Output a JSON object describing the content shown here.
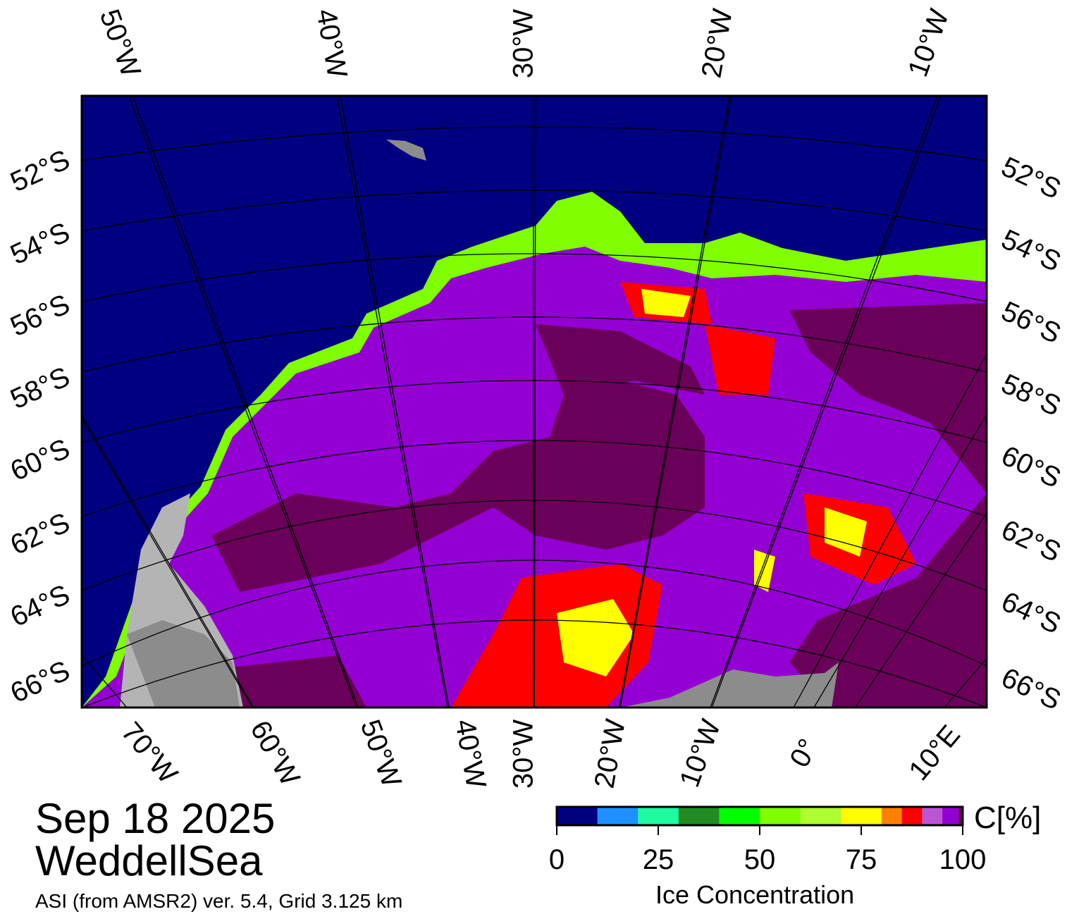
{
  "title": {
    "date": "Sep 18 2025",
    "region": "WeddellSea",
    "footer": "ASI (from AMSR2) ver. 5.4,  Grid 3.125 km"
  },
  "top_lon_labels": [
    "50°W",
    "40°W",
    "30°W",
    "20°W",
    "10°W"
  ],
  "bottom_lon_labels": [
    "70°W",
    "60°W",
    "50°W",
    "40°W",
    "30°W",
    "20°W",
    "10°W",
    "0°",
    "10°E"
  ],
  "lat_labels": [
    "52°S",
    "54°S",
    "56°S",
    "58°S",
    "60°S",
    "62°S",
    "64°S",
    "66°S"
  ],
  "colorbar": {
    "unit_label": "C[%]",
    "axis_label": "Ice Concentration",
    "ticks": [
      "0",
      "25",
      "50",
      "75",
      "100"
    ],
    "bins": [
      {
        "from": 0,
        "to": 10,
        "color": "#000080"
      },
      {
        "from": 10,
        "to": 20,
        "color": "#1e90ff"
      },
      {
        "from": 20,
        "to": 30,
        "color": "#1efaa0"
      },
      {
        "from": 30,
        "to": 40,
        "color": "#228b22"
      },
      {
        "from": 40,
        "to": 50,
        "color": "#00ff00"
      },
      {
        "from": 50,
        "to": 60,
        "color": "#7fff00"
      },
      {
        "from": 60,
        "to": 70,
        "color": "#adff2f"
      },
      {
        "from": 70,
        "to": 80,
        "color": "#ffff00"
      },
      {
        "from": 80,
        "to": 85,
        "color": "#ff8000"
      },
      {
        "from": 85,
        "to": 90,
        "color": "#ff0000"
      },
      {
        "from": 90,
        "to": 95,
        "color": "#ba55d3"
      },
      {
        "from": 95,
        "to": 99,
        "color": "#9400d3"
      },
      {
        "from": 99,
        "to": 100,
        "color": "#6b005a"
      }
    ]
  },
  "colors": {
    "ocean": "#000080",
    "land": "#8c8c8c",
    "land_light": "#b4b4b4",
    "ice_full": "#6b005a",
    "ice_high": "#9400d3"
  }
}
